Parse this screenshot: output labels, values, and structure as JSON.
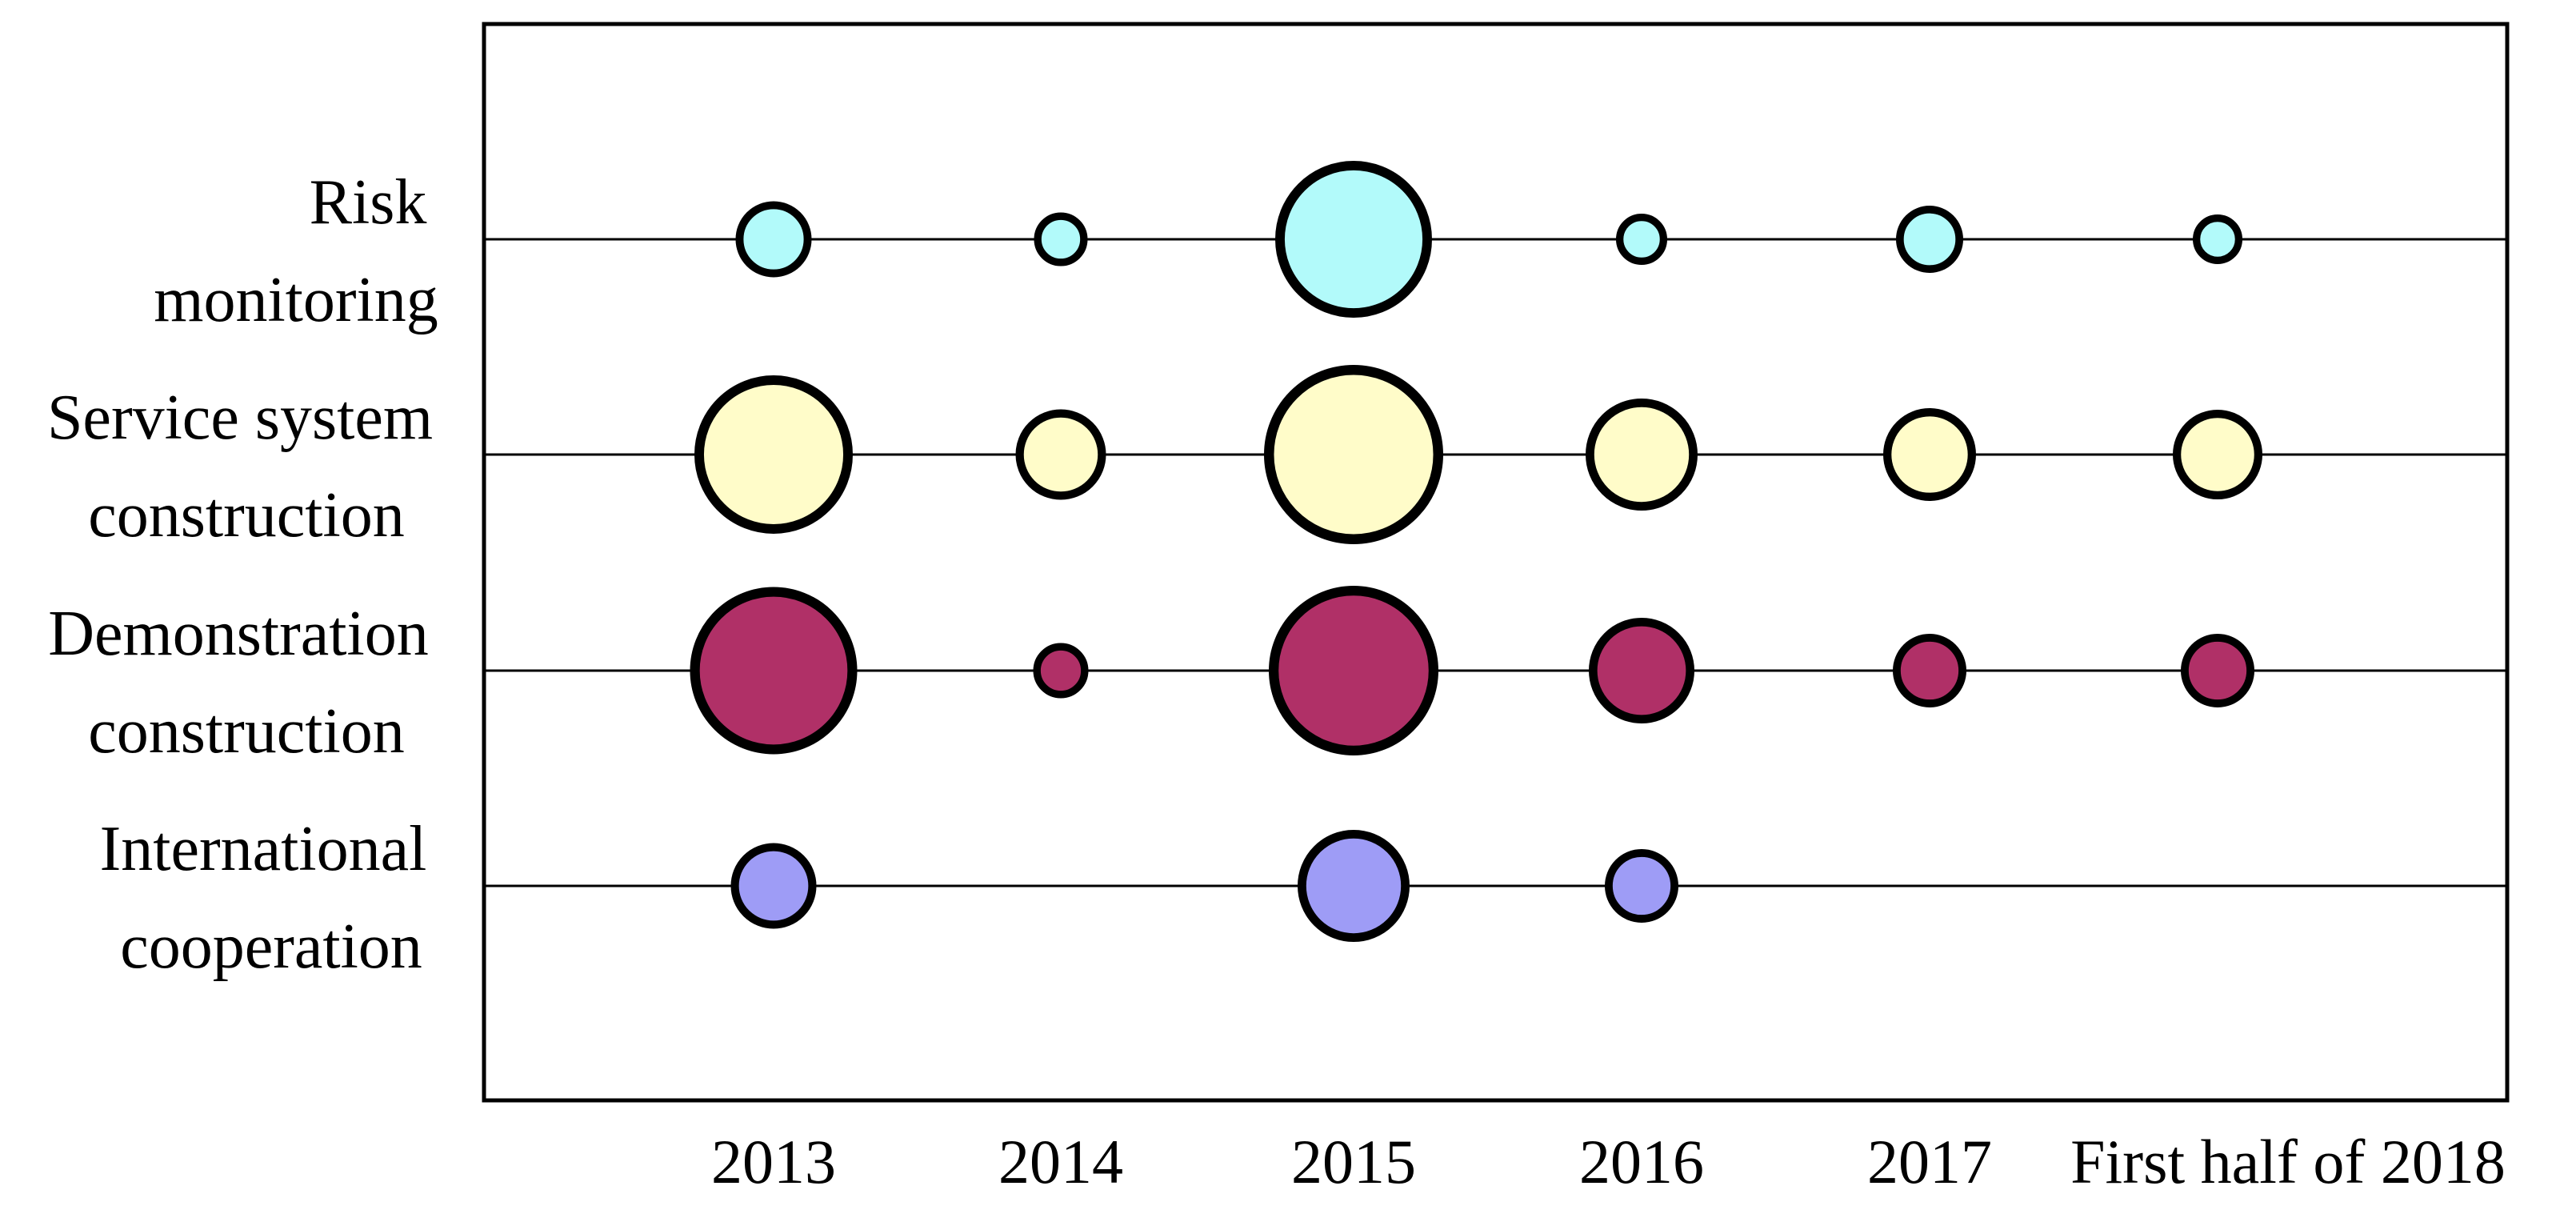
{
  "figure": {
    "background_color": "#ffffff",
    "axis_color": "#000000",
    "bubble_outline_color": "#000000"
  },
  "chart_data": {
    "type": "bubble",
    "title": "",
    "xlabel": "",
    "ylabel": "",
    "legend": "none",
    "grid": "horizontal category baselines inside a rectangular frame",
    "categories": [
      "2013",
      "2014",
      "2015",
      "2016",
      "2017",
      "First half of 2018"
    ],
    "series": [
      {
        "name": "Risk monitoring",
        "label_lines": [
          "Risk",
          "monitoring"
        ],
        "color": "#B2FAFA",
        "sizes": [
          95,
          67,
          196,
          64,
          84,
          62
        ]
      },
      {
        "name": "Service system construction",
        "label_lines": [
          "Service system",
          "construction"
        ],
        "color": "#FFFCC9",
        "sizes": [
          198,
          113,
          224,
          140,
          116,
          112
        ]
      },
      {
        "name": "Demonstration construction",
        "label_lines": [
          "Demonstration",
          "construction"
        ],
        "color": "#B03067",
        "sizes": [
          209,
          69,
          212,
          132,
          92,
          92
        ]
      },
      {
        "name": "International cooperation",
        "label_lines": [
          "International",
          "cooperation"
        ],
        "color": "#9E9CF6",
        "sizes": [
          107,
          0,
          140,
          92,
          0,
          0
        ]
      }
    ],
    "size_meaning": "relative activity magnitude per year; values are bubble outer diameters in px on a 3220-wide canvas (0 = no bubble shown)"
  }
}
